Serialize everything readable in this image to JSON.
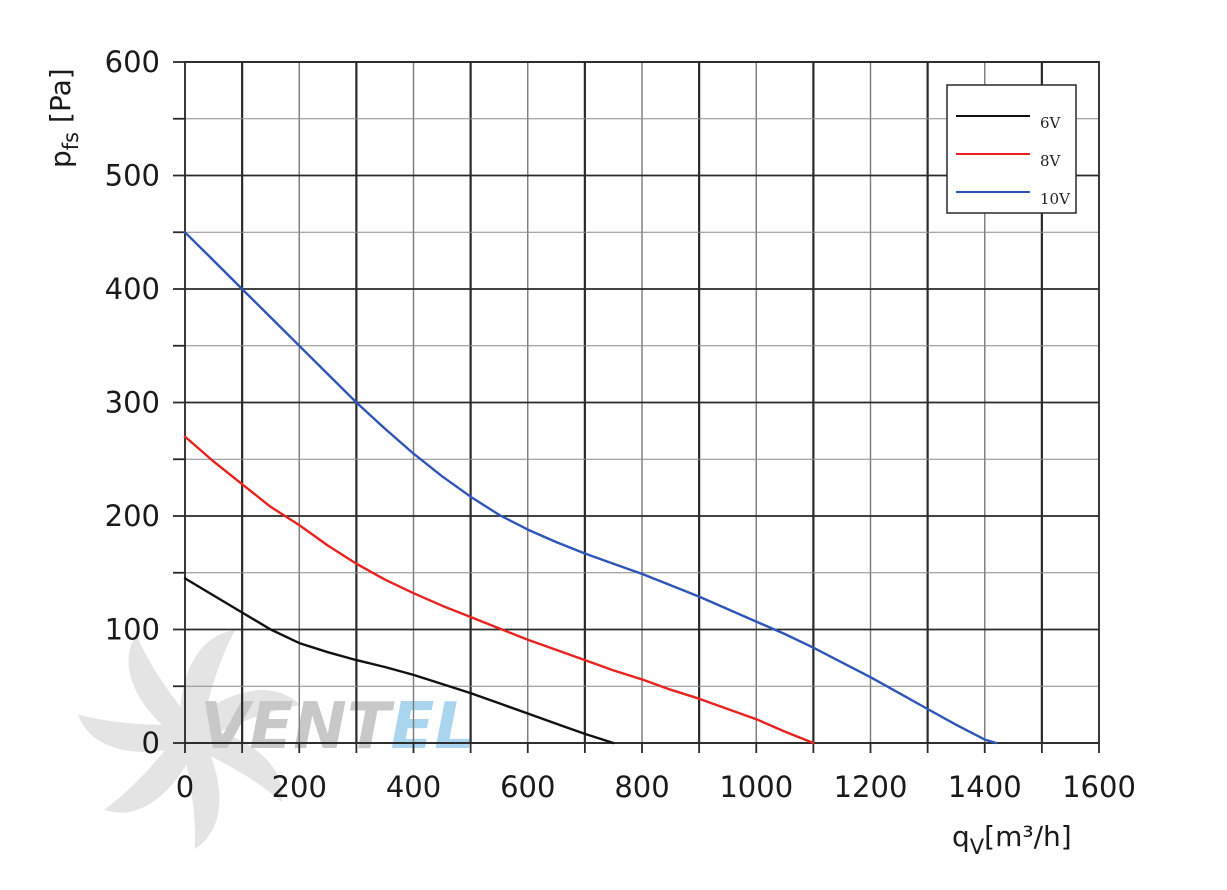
{
  "chart_data": {
    "type": "line",
    "title": "",
    "xlabel": "q",
    "xlabel_sub": "V",
    "xlabel_unit": "[m³/h]",
    "ylabel": "p",
    "ylabel_sub": "fs",
    "ylabel_unit": " [Pa]",
    "xlim": [
      0,
      1600
    ],
    "ylim": [
      0,
      600
    ],
    "x_ticks": [
      0,
      200,
      400,
      600,
      800,
      1000,
      1200,
      1400,
      1600
    ],
    "y_ticks": [
      0,
      100,
      200,
      300,
      400,
      500,
      600
    ],
    "x_grid_step": 100,
    "y_grid_step": 50,
    "grid": true,
    "legend_position": "top-right",
    "series": [
      {
        "name": "6V",
        "color": "#111111",
        "points": [
          [
            0,
            145
          ],
          [
            50,
            130
          ],
          [
            100,
            115
          ],
          [
            150,
            100
          ],
          [
            200,
            88
          ],
          [
            250,
            80
          ],
          [
            300,
            73
          ],
          [
            350,
            67
          ],
          [
            400,
            60
          ],
          [
            450,
            52
          ],
          [
            500,
            44
          ],
          [
            550,
            35
          ],
          [
            600,
            26
          ],
          [
            650,
            17
          ],
          [
            700,
            8
          ],
          [
            750,
            0
          ]
        ]
      },
      {
        "name": "8V",
        "color": "#e8231f",
        "points": [
          [
            0,
            270
          ],
          [
            50,
            248
          ],
          [
            100,
            228
          ],
          [
            150,
            208
          ],
          [
            200,
            192
          ],
          [
            250,
            174
          ],
          [
            300,
            158
          ],
          [
            350,
            144
          ],
          [
            400,
            132
          ],
          [
            450,
            121
          ],
          [
            500,
            111
          ],
          [
            550,
            101
          ],
          [
            600,
            91
          ],
          [
            650,
            82
          ],
          [
            700,
            73
          ],
          [
            750,
            64
          ],
          [
            800,
            56
          ],
          [
            850,
            47
          ],
          [
            900,
            39
          ],
          [
            950,
            30
          ],
          [
            1000,
            21
          ],
          [
            1050,
            10
          ],
          [
            1100,
            0
          ]
        ]
      },
      {
        "name": "10V",
        "color": "#2e55b8",
        "points": [
          [
            0,
            450
          ],
          [
            50,
            425
          ],
          [
            100,
            400
          ],
          [
            150,
            375
          ],
          [
            200,
            350
          ],
          [
            250,
            325
          ],
          [
            300,
            300
          ],
          [
            350,
            277
          ],
          [
            400,
            255
          ],
          [
            450,
            235
          ],
          [
            500,
            217
          ],
          [
            550,
            201
          ],
          [
            600,
            188
          ],
          [
            650,
            177
          ],
          [
            700,
            167
          ],
          [
            750,
            158
          ],
          [
            800,
            149
          ],
          [
            850,
            139
          ],
          [
            900,
            129
          ],
          [
            950,
            118
          ],
          [
            1000,
            107
          ],
          [
            1050,
            96
          ],
          [
            1100,
            84
          ],
          [
            1150,
            71
          ],
          [
            1200,
            58
          ],
          [
            1250,
            44
          ],
          [
            1300,
            30
          ],
          [
            1350,
            16
          ],
          [
            1400,
            3
          ],
          [
            1420,
            0
          ]
        ]
      }
    ]
  },
  "watermark": {
    "text_part1": "VENT",
    "text_part2": "EL",
    "color_part1": "#c8c8c8",
    "color_part2": "#a9d6ee"
  }
}
